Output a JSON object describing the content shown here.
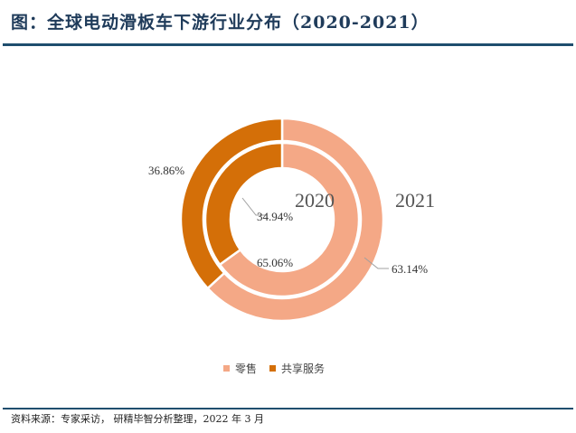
{
  "title": "图：全球电动滑板车下游行业分布（2020-2021）",
  "source": "资料来源：专家采访， 研精毕智分析整理，2022 年 3 月",
  "legend": [
    {
      "label": "零售",
      "color": "#F4A886"
    },
    {
      "label": "共享服务",
      "color": "#D46F08"
    }
  ],
  "rings": {
    "inner_label": "2020",
    "outer_label": "2021"
  },
  "labels": {
    "l2020_retail": "65.06%",
    "l2020_shared": "34.94%",
    "l2021_retail": "63.14%",
    "l2021_shared": "36.86%"
  },
  "chart_data": {
    "type": "pie",
    "subtype": "nested-donut",
    "title": "全球电动滑板车下游行业分布（2020-2021）",
    "categories": [
      "零售",
      "共享服务"
    ],
    "series": [
      {
        "name": "2020",
        "ring": "inner",
        "values": [
          65.06,
          34.94
        ]
      },
      {
        "name": "2021",
        "ring": "outer",
        "values": [
          63.14,
          36.86
        ]
      }
    ],
    "colors": [
      "#F4A886",
      "#D46F08"
    ],
    "legend_position": "bottom",
    "units": "%"
  }
}
